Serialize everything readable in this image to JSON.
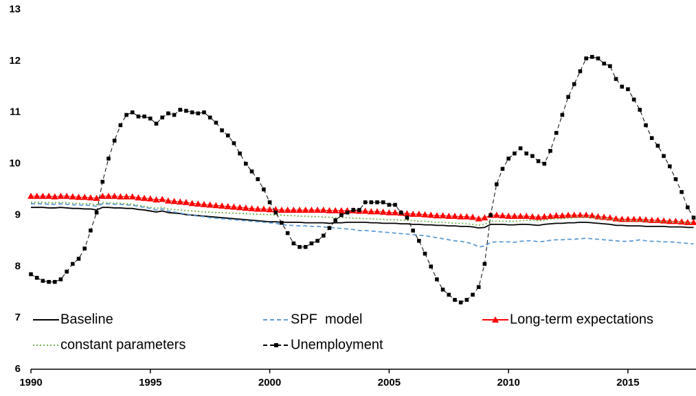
{
  "chart_data": {
    "type": "line",
    "x": [
      1990,
      1990.25,
      1990.5,
      1990.75,
      1991,
      1991.25,
      1991.5,
      1991.75,
      1992,
      1992.25,
      1992.5,
      1992.75,
      1993,
      1993.25,
      1993.5,
      1993.75,
      1994,
      1994.25,
      1994.5,
      1994.75,
      1995,
      1995.25,
      1995.5,
      1995.75,
      1996,
      1996.25,
      1996.5,
      1996.75,
      1997,
      1997.25,
      1997.5,
      1997.75,
      1998,
      1998.25,
      1998.5,
      1998.75,
      1999,
      1999.25,
      1999.5,
      1999.75,
      2000,
      2000.25,
      2000.5,
      2000.75,
      2001,
      2001.25,
      2001.5,
      2001.75,
      2002,
      2002.25,
      2002.5,
      2002.75,
      2003,
      2003.25,
      2003.5,
      2003.75,
      2004,
      2004.25,
      2004.5,
      2004.75,
      2005,
      2005.25,
      2005.5,
      2005.75,
      2006,
      2006.25,
      2006.5,
      2006.75,
      2007,
      2007.25,
      2007.5,
      2007.75,
      2008,
      2008.25,
      2008.5,
      2008.75,
      2009,
      2009.25,
      2009.5,
      2009.75,
      2010,
      2010.25,
      2010.5,
      2010.75,
      2011,
      2011.25,
      2011.5,
      2011.75,
      2012,
      2012.25,
      2012.5,
      2012.75,
      2013,
      2013.25,
      2013.5,
      2013.75,
      2014,
      2014.25,
      2014.5,
      2014.75,
      2015,
      2015.25,
      2015.5,
      2015.75,
      2016,
      2016.25,
      2016.5,
      2016.75,
      2017,
      2017.25,
      2017.5,
      2017.75
    ],
    "series": [
      {
        "name": "Baseline",
        "color": "#000000",
        "dash": "solid",
        "values": [
          9.15,
          9.15,
          9.15,
          9.14,
          9.14,
          9.15,
          9.14,
          9.13,
          9.13,
          9.12,
          9.12,
          9.1,
          9.15,
          9.15,
          9.14,
          9.14,
          9.13,
          9.13,
          9.11,
          9.1,
          9.08,
          9.06,
          9.08,
          9.05,
          9.04,
          9.03,
          9.01,
          9.0,
          8.99,
          8.98,
          8.97,
          8.96,
          8.95,
          8.94,
          8.93,
          8.92,
          8.91,
          8.9,
          8.89,
          8.88,
          8.87,
          8.87,
          8.86,
          8.86,
          8.86,
          8.86,
          8.85,
          8.85,
          8.85,
          8.85,
          8.84,
          8.85,
          8.85,
          8.86,
          8.86,
          8.86,
          8.86,
          8.85,
          8.85,
          8.84,
          8.84,
          8.84,
          8.83,
          8.83,
          8.82,
          8.82,
          8.81,
          8.81,
          8.8,
          8.8,
          8.79,
          8.79,
          8.78,
          8.78,
          8.77,
          8.75,
          8.76,
          8.82,
          8.82,
          8.82,
          8.81,
          8.81,
          8.82,
          8.82,
          8.81,
          8.8,
          8.82,
          8.83,
          8.84,
          8.84,
          8.85,
          8.85,
          8.86,
          8.86,
          8.85,
          8.84,
          8.83,
          8.82,
          8.8,
          8.8,
          8.79,
          8.79,
          8.79,
          8.78,
          8.78,
          8.78,
          8.78,
          8.77,
          8.77,
          8.77,
          8.76,
          8.76
        ]
      },
      {
        "name": "SPF  model",
        "color": "#5b9bd5",
        "dash": "dashed",
        "values": [
          9.22,
          9.22,
          9.22,
          9.21,
          9.21,
          9.22,
          9.21,
          9.2,
          9.2,
          9.19,
          9.19,
          9.17,
          9.22,
          9.22,
          9.21,
          9.21,
          9.2,
          9.19,
          9.17,
          9.15,
          9.13,
          9.1,
          9.12,
          9.08,
          9.06,
          9.04,
          9.02,
          9.0,
          8.98,
          8.97,
          8.95,
          8.94,
          8.93,
          8.92,
          8.91,
          8.9,
          8.89,
          8.88,
          8.87,
          8.86,
          8.85,
          8.84,
          8.82,
          8.8,
          8.8,
          8.79,
          8.79,
          8.78,
          8.78,
          8.77,
          8.76,
          8.75,
          8.74,
          8.73,
          8.72,
          8.7,
          8.7,
          8.69,
          8.68,
          8.67,
          8.66,
          8.65,
          8.64,
          8.63,
          8.62,
          8.61,
          8.6,
          8.58,
          8.56,
          8.54,
          8.52,
          8.5,
          8.49,
          8.47,
          8.44,
          8.38,
          8.4,
          8.47,
          8.48,
          8.48,
          8.48,
          8.47,
          8.49,
          8.5,
          8.5,
          8.48,
          8.49,
          8.51,
          8.52,
          8.52,
          8.53,
          8.53,
          8.54,
          8.55,
          8.54,
          8.53,
          8.52,
          8.51,
          8.5,
          8.49,
          8.49,
          8.5,
          8.52,
          8.5,
          8.49,
          8.49,
          8.48,
          8.48,
          8.47,
          8.46,
          8.45,
          8.44
        ]
      },
      {
        "name": "Long-term expectations",
        "color": "#ff0000",
        "dash": "solid",
        "marker": "triangle",
        "values": [
          9.37,
          9.37,
          9.37,
          9.37,
          9.36,
          9.37,
          9.37,
          9.36,
          9.35,
          9.35,
          9.34,
          9.33,
          9.37,
          9.37,
          9.37,
          9.36,
          9.36,
          9.36,
          9.34,
          9.33,
          9.32,
          9.3,
          9.31,
          9.28,
          9.27,
          9.26,
          9.25,
          9.23,
          9.22,
          9.21,
          9.2,
          9.19,
          9.18,
          9.17,
          9.16,
          9.15,
          9.14,
          9.13,
          9.12,
          9.12,
          9.11,
          9.11,
          9.1,
          9.1,
          9.1,
          9.1,
          9.1,
          9.1,
          9.1,
          9.1,
          9.09,
          9.09,
          9.09,
          9.09,
          9.09,
          9.08,
          9.08,
          9.07,
          9.07,
          9.06,
          9.05,
          9.05,
          9.04,
          9.03,
          9.02,
          9.02,
          9.01,
          9.0,
          8.99,
          8.99,
          8.98,
          8.98,
          8.97,
          8.97,
          8.96,
          8.93,
          8.95,
          9.0,
          9.0,
          8.99,
          8.98,
          8.98,
          8.98,
          8.98,
          8.97,
          8.96,
          8.97,
          8.98,
          8.99,
          8.99,
          9.0,
          9.0,
          9.0,
          9.0,
          8.99,
          8.97,
          8.96,
          8.95,
          8.93,
          8.92,
          8.92,
          8.92,
          8.92,
          8.91,
          8.9,
          8.9,
          8.89,
          8.88,
          8.88,
          8.87,
          8.86,
          8.86
        ]
      },
      {
        "name": "constant parameters",
        "color": "#70ad47",
        "dash": "dotted",
        "values": [
          9.25,
          9.25,
          9.25,
          9.24,
          9.24,
          9.25,
          9.24,
          9.23,
          9.23,
          9.22,
          9.22,
          9.2,
          9.24,
          9.24,
          9.23,
          9.23,
          9.22,
          9.21,
          9.19,
          9.17,
          9.15,
          9.13,
          9.15,
          9.12,
          9.11,
          9.1,
          9.09,
          9.08,
          9.07,
          9.06,
          9.06,
          9.05,
          9.05,
          9.04,
          9.04,
          9.03,
          9.03,
          9.02,
          9.02,
          9.01,
          9.01,
          9.0,
          9.0,
          8.99,
          8.99,
          8.98,
          8.98,
          8.97,
          8.97,
          8.96,
          8.96,
          8.95,
          8.95,
          8.95,
          8.94,
          8.94,
          8.93,
          8.93,
          8.92,
          8.92,
          8.91,
          8.91,
          8.9,
          8.9,
          8.89,
          8.88,
          8.88,
          8.87,
          8.86,
          8.86,
          8.85,
          8.84,
          8.84,
          8.83,
          8.82,
          8.8,
          8.82,
          8.88,
          8.88,
          8.88,
          8.88,
          8.88,
          8.89,
          8.9,
          8.9,
          8.89,
          8.9,
          8.92,
          8.93,
          8.93,
          8.94,
          8.95,
          8.96,
          8.96,
          8.95,
          8.94,
          8.93,
          8.92,
          8.9,
          8.9,
          8.89,
          8.89,
          8.89,
          8.88,
          8.88,
          8.88,
          8.87,
          8.87,
          8.86,
          8.86,
          8.85,
          8.85
        ]
      },
      {
        "name": "Unemployment",
        "color": "#000000",
        "dash": "dashed",
        "marker": "square",
        "values": [
          7.85,
          7.78,
          7.72,
          7.7,
          7.7,
          7.75,
          7.9,
          8.05,
          8.15,
          8.35,
          8.7,
          9.05,
          9.65,
          10.1,
          10.45,
          10.75,
          10.95,
          11.0,
          10.92,
          10.92,
          10.88,
          10.78,
          10.9,
          10.98,
          10.95,
          11.05,
          11.03,
          11.0,
          10.98,
          11.0,
          10.9,
          10.8,
          10.65,
          10.55,
          10.4,
          10.2,
          10.0,
          9.85,
          9.7,
          9.5,
          9.25,
          9.05,
          8.85,
          8.65,
          8.45,
          8.38,
          8.38,
          8.45,
          8.5,
          8.6,
          8.75,
          8.9,
          9.0,
          9.05,
          9.1,
          9.1,
          9.25,
          9.25,
          9.25,
          9.25,
          9.2,
          9.2,
          9.05,
          8.95,
          8.7,
          8.5,
          8.25,
          8.0,
          7.75,
          7.55,
          7.45,
          7.35,
          7.3,
          7.35,
          7.45,
          7.6,
          8.05,
          9.0,
          9.6,
          9.9,
          10.1,
          10.2,
          10.3,
          10.2,
          10.15,
          10.05,
          10.0,
          10.25,
          10.6,
          10.95,
          11.3,
          11.55,
          11.8,
          12.05,
          12.08,
          12.05,
          11.95,
          11.9,
          11.65,
          11.5,
          11.45,
          11.25,
          11.05,
          10.75,
          10.5,
          10.35,
          10.15,
          9.95,
          9.7,
          9.45,
          9.15,
          8.95
        ]
      }
    ],
    "xlim": [
      1990,
      2017.85
    ],
    "xticks": [
      1990,
      1995,
      2000,
      2005,
      2010,
      2015
    ],
    "ylim": [
      6,
      13
    ],
    "yticks": [
      6,
      7,
      8,
      9,
      10,
      11,
      12,
      13
    ],
    "grid": false,
    "legend": "bottom"
  }
}
